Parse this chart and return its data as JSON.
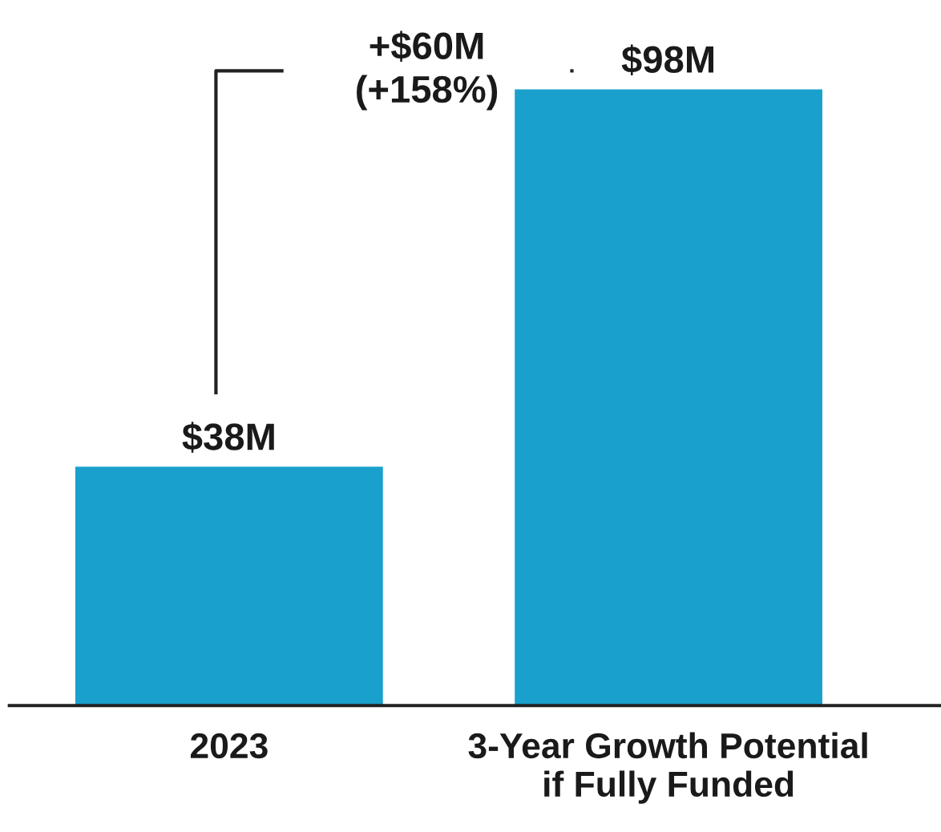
{
  "chart_data": {
    "type": "bar",
    "categories": [
      "2023",
      "3-Year Growth Potential\nif Fully Funded"
    ],
    "values": [
      38,
      98
    ],
    "value_labels": [
      "$38M",
      "$98M"
    ],
    "color": "#1aa0cc",
    "annotations": [
      "+$60M\n(+158%)"
    ],
    "grid": false,
    "legend": false
  }
}
